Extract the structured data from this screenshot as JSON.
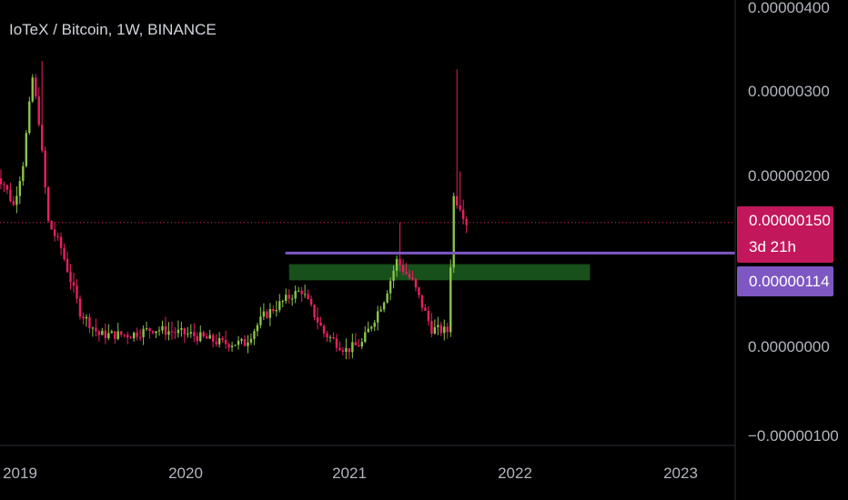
{
  "header": {
    "title": "IoTeX / Bitcoin, 1W, BINANCE"
  },
  "price_axis": {
    "ticks": [
      "0.00000400",
      "0.00000300",
      "0.00000200",
      "0.00000000",
      "−0.00000100"
    ]
  },
  "time_axis": {
    "ticks": [
      "2019",
      "2020",
      "2021",
      "2022",
      "2023"
    ]
  },
  "badges": {
    "last_price": "0.00000150",
    "countdown": "3d 21h",
    "level_price": "0.00000114"
  },
  "colors": {
    "background": "#000000",
    "up": "#8bc34a",
    "down": "#e91e63",
    "level_line": "#7e57c2",
    "zone": "#1b5e20",
    "last_price_badge": "#c2185b"
  },
  "chart_data": {
    "type": "candlestick",
    "title": "IoTeX / Bitcoin, 1W, BINANCE",
    "interval": "1W",
    "exchange": "BINANCE",
    "y_range": [
      -1.1e-06,
      4e-06
    ],
    "x_range": [
      "2018-10-29",
      "2023-05-01"
    ],
    "last_price": 1.5e-06,
    "horizontal_level": 1.14e-06,
    "support_zone": {
      "from": "2020-08-10",
      "to": "2022-06-06",
      "low": 8.2e-07,
      "high": 1.01e-06
    },
    "close_path": [
      [
        "2018-10-29",
        2.1e-06
      ],
      [
        "2018-11-19",
        1.95e-06
      ],
      [
        "2018-12-10",
        1.7e-06
      ],
      [
        "2018-12-31",
        2.2e-06
      ],
      [
        "2019-01-21",
        3.2e-06
      ],
      [
        "2019-02-04",
        2.7e-06
      ],
      [
        "2019-02-25",
        1.5e-06
      ],
      [
        "2019-03-25",
        1.2e-06
      ],
      [
        "2019-05-06",
        4.5e-07
      ],
      [
        "2019-06-17",
        1.8e-07
      ],
      [
        "2019-08-26",
        1.8e-07
      ],
      [
        "2019-10-14",
        2.5e-07
      ],
      [
        "2020-01-06",
        1.8e-07
      ],
      [
        "2020-03-16",
        8e-08
      ],
      [
        "2020-05-04",
        8e-08
      ],
      [
        "2020-06-15",
        4e-07
      ],
      [
        "2020-08-17",
        6.5e-07
      ],
      [
        "2020-09-07",
        7e-07
      ],
      [
        "2020-10-26",
        2e-07
      ],
      [
        "2020-12-14",
        0.0
      ],
      [
        "2021-01-18",
        8e-08
      ],
      [
        "2021-03-08",
        6e-07
      ],
      [
        "2021-04-05",
        1.05e-06
      ],
      [
        "2021-05-10",
        8e-07
      ],
      [
        "2021-06-21",
        2.5e-07
      ],
      [
        "2021-07-26",
        2.2e-07
      ],
      [
        "2021-08-09",
        1.8e-06
      ],
      [
        "2021-08-23",
        1.7e-06
      ],
      [
        "2021-09-06",
        1.5e-06
      ]
    ]
  }
}
